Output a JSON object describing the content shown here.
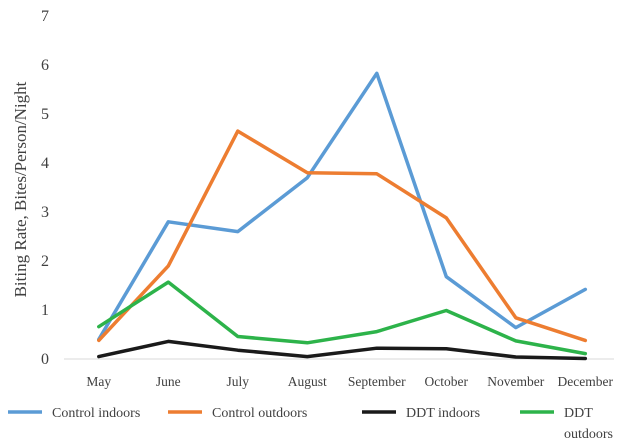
{
  "chart_data": {
    "type": "line",
    "title": "",
    "xlabel": "",
    "ylabel": "Biting Rate, Bites/Person/Night",
    "ylim": [
      0,
      7
    ],
    "yticks": [
      0,
      1,
      2,
      3,
      4,
      5,
      6,
      7
    ],
    "grid": false,
    "legend_position": "bottom",
    "categories": [
      "May",
      "June",
      "July",
      "August",
      "September",
      "October",
      "November",
      "December"
    ],
    "series": [
      {
        "name": "Control indoors",
        "color": "#5b9bd5",
        "values": [
          0.4,
          2.8,
          2.6,
          3.7,
          5.83,
          1.68,
          0.64,
          1.42
        ]
      },
      {
        "name": "Control outdoors",
        "color": "#ed7d31",
        "values": [
          0.38,
          1.9,
          4.65,
          3.8,
          3.78,
          2.88,
          0.84,
          0.38
        ]
      },
      {
        "name": "DDT indoors",
        "color": "#1a1a1a",
        "values": [
          0.05,
          0.36,
          0.18,
          0.05,
          0.22,
          0.21,
          0.04,
          0.01
        ]
      },
      {
        "name": "DDT outdoors",
        "color": "#2db34a",
        "values": [
          0.66,
          1.57,
          0.46,
          0.33,
          0.56,
          0.99,
          0.37,
          0.11
        ]
      }
    ]
  }
}
